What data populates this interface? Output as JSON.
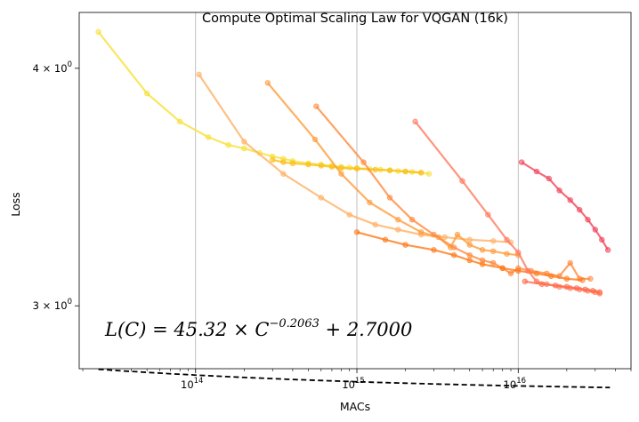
{
  "chart_data": {
    "type": "line",
    "title": "Compute Optimal Scaling Law for VQGAN (16k)",
    "xlabel": "MACs",
    "ylabel": "Loss",
    "x_scale": "log",
    "y_scale": "log",
    "xlim": [
      19000000000000.0,
      5e+16
    ],
    "ylim": [
      2.78,
      4.28
    ],
    "x_ticks": [
      {
        "value": 100000000000000.0,
        "base": "10",
        "exp": "14"
      },
      {
        "value": 1000000000000000.0,
        "base": "10",
        "exp": "15"
      },
      {
        "value": 1e+16,
        "base": "10",
        "exp": "16"
      }
    ],
    "y_ticks": [
      {
        "value": 4.0,
        "base": "4 × 10",
        "exp": "0"
      },
      {
        "value": 3.0,
        "base": "3 × 10",
        "exp": "0"
      }
    ],
    "grid": "x-major",
    "annotation": {
      "lhs": "L(C) = 45.32 × C",
      "exponent": "−0.2063",
      "rhs": " + 2.7000"
    },
    "fit": {
      "a": 45.32,
      "b": -0.2063,
      "c": 2.7,
      "x_range": [
        25000000000000.0,
        3.7e+16
      ],
      "color": "#000000",
      "style": "dashed"
    },
    "series": [
      {
        "color": "#f7e03a",
        "points": [
          [
            25000000000000.0,
            4.18
          ],
          [
            50000000000000.0,
            3.88
          ],
          [
            80000000000000.0,
            3.75
          ],
          [
            120000000000000.0,
            3.68
          ],
          [
            160000000000000.0,
            3.645
          ],
          [
            200000000000000.0,
            3.63
          ],
          [
            250000000000000.0,
            3.61
          ],
          [
            300000000000000.0,
            3.595
          ],
          [
            350000000000000.0,
            3.585
          ],
          [
            400000000000000.0,
            3.575
          ],
          [
            500000000000000.0,
            3.565
          ],
          [
            600000000000000.0,
            3.56
          ],
          [
            700000000000000.0,
            3.555
          ],
          [
            800000000000000.0,
            3.55
          ],
          [
            900000000000000.0,
            3.547
          ],
          [
            1000000000000000.0,
            3.545
          ],
          [
            1200000000000000.0,
            3.54
          ],
          [
            1400000000000000.0,
            3.538
          ],
          [
            1600000000000000.0,
            3.535
          ],
          [
            1800000000000000.0,
            3.532
          ],
          [
            2000000000000000.0,
            3.53
          ],
          [
            2200000000000000.0,
            3.528
          ],
          [
            2500000000000000.0,
            3.525
          ],
          [
            2800000000000000.0,
            3.52
          ]
        ]
      },
      {
        "color": "#f9bf1a",
        "points": [
          [
            300000000000000.0,
            3.58
          ],
          [
            350000000000000.0,
            3.57
          ],
          [
            400000000000000.0,
            3.565
          ],
          [
            500000000000000.0,
            3.56
          ],
          [
            600000000000000.0,
            3.555
          ],
          [
            700000000000000.0,
            3.55
          ],
          [
            800000000000000.0,
            3.545
          ],
          [
            1000000000000000.0,
            3.542
          ],
          [
            1300000000000000.0,
            3.538
          ],
          [
            1600000000000000.0,
            3.535
          ],
          [
            2000000000000000.0,
            3.53
          ],
          [
            2500000000000000.0,
            3.525
          ]
        ]
      },
      {
        "color": "#ffb066",
        "points": [
          [
            105000000000000.0,
            3.97
          ],
          [
            200000000000000.0,
            3.66
          ],
          [
            350000000000000.0,
            3.52
          ],
          [
            600000000000000.0,
            3.42
          ],
          [
            900000000000000.0,
            3.35
          ],
          [
            1300000000000000.0,
            3.31
          ],
          [
            1800000000000000.0,
            3.29
          ],
          [
            2500000000000000.0,
            3.27
          ],
          [
            3500000000000000.0,
            3.26
          ],
          [
            5000000000000000.0,
            3.25
          ],
          [
            7000000000000000.0,
            3.245
          ],
          [
            9000000000000000.0,
            3.24
          ]
        ]
      },
      {
        "color": "#ff9c3a",
        "points": [
          [
            280000000000000.0,
            3.93
          ],
          [
            550000000000000.0,
            3.67
          ],
          [
            800000000000000.0,
            3.52
          ],
          [
            1200000000000000.0,
            3.4
          ],
          [
            1800000000000000.0,
            3.33
          ],
          [
            2500000000000000.0,
            3.28
          ],
          [
            3200000000000000.0,
            3.26
          ],
          [
            3800000000000000.0,
            3.22
          ],
          [
            4200000000000000.0,
            3.27
          ],
          [
            5000000000000000.0,
            3.23
          ],
          [
            6000000000000000.0,
            3.21
          ],
          [
            7000000000000000.0,
            3.205
          ],
          [
            8500000000000000.0,
            3.195
          ],
          [
            1e+16,
            3.19
          ]
        ]
      },
      {
        "color": "#ff8a3d",
        "points": [
          [
            560000000000000.0,
            3.82
          ],
          [
            1100000000000000.0,
            3.57
          ],
          [
            1600000000000000.0,
            3.42
          ],
          [
            2200000000000000.0,
            3.33
          ],
          [
            3000000000000000.0,
            3.27
          ],
          [
            4000000000000000.0,
            3.22
          ],
          [
            5000000000000000.0,
            3.19
          ],
          [
            6000000000000000.0,
            3.17
          ],
          [
            7000000000000000.0,
            3.16
          ],
          [
            8000000000000000.0,
            3.14
          ],
          [
            9000000000000000.0,
            3.12
          ],
          [
            1e+16,
            3.14
          ],
          [
            1.2e+16,
            3.13
          ],
          [
            1.5e+16,
            3.12
          ],
          [
            1.8e+16,
            3.11
          ],
          [
            2.1e+16,
            3.16
          ],
          [
            2.4e+16,
            3.1
          ],
          [
            2.8e+16,
            3.1
          ]
        ]
      },
      {
        "color": "#ff7a1a",
        "points": [
          [
            1000000000000000.0,
            3.28
          ],
          [
            1500000000000000.0,
            3.25
          ],
          [
            2000000000000000.0,
            3.23
          ],
          [
            3000000000000000.0,
            3.21
          ],
          [
            4000000000000000.0,
            3.19
          ],
          [
            5000000000000000.0,
            3.17
          ],
          [
            6000000000000000.0,
            3.155
          ],
          [
            8000000000000000.0,
            3.14
          ],
          [
            1e+16,
            3.13
          ],
          [
            1.3e+16,
            3.12
          ],
          [
            1.6e+16,
            3.11
          ],
          [
            2e+16,
            3.1
          ],
          [
            2.5e+16,
            3.095
          ]
        ]
      },
      {
        "color": "#ff7a5f",
        "points": [
          [
            2300000000000000.0,
            3.75
          ],
          [
            4500000000000000.0,
            3.49
          ],
          [
            6500000000000000.0,
            3.35
          ],
          [
            8500000000000000.0,
            3.25
          ],
          [
            1e+16,
            3.2
          ],
          [
            1.15e+16,
            3.13
          ],
          [
            1.3e+16,
            3.09
          ],
          [
            1.5e+16,
            3.08
          ],
          [
            1.8e+16,
            3.07
          ],
          [
            2.1e+16,
            3.065
          ],
          [
            2.4e+16,
            3.06
          ],
          [
            2.7e+16,
            3.055
          ],
          [
            3e+16,
            3.05
          ],
          [
            3.2e+16,
            3.045
          ]
        ]
      },
      {
        "color": "#ff6a4a",
        "points": [
          [
            1.1e+16,
            3.09
          ],
          [
            1.4e+16,
            3.08
          ],
          [
            1.7e+16,
            3.075
          ],
          [
            2e+16,
            3.07
          ],
          [
            2.3e+16,
            3.065
          ],
          [
            2.6e+16,
            3.06
          ],
          [
            2.9e+16,
            3.055
          ],
          [
            3.2e+16,
            3.05
          ]
        ]
      },
      {
        "color": "#f0475d",
        "points": [
          [
            1.05e+16,
            3.57
          ],
          [
            1.3e+16,
            3.53
          ],
          [
            1.55e+16,
            3.5
          ],
          [
            1.8e+16,
            3.45
          ],
          [
            2.1e+16,
            3.41
          ],
          [
            2.4e+16,
            3.37
          ],
          [
            2.7e+16,
            3.33
          ],
          [
            3e+16,
            3.29
          ],
          [
            3.3e+16,
            3.25
          ],
          [
            3.6e+16,
            3.21
          ]
        ]
      }
    ]
  }
}
